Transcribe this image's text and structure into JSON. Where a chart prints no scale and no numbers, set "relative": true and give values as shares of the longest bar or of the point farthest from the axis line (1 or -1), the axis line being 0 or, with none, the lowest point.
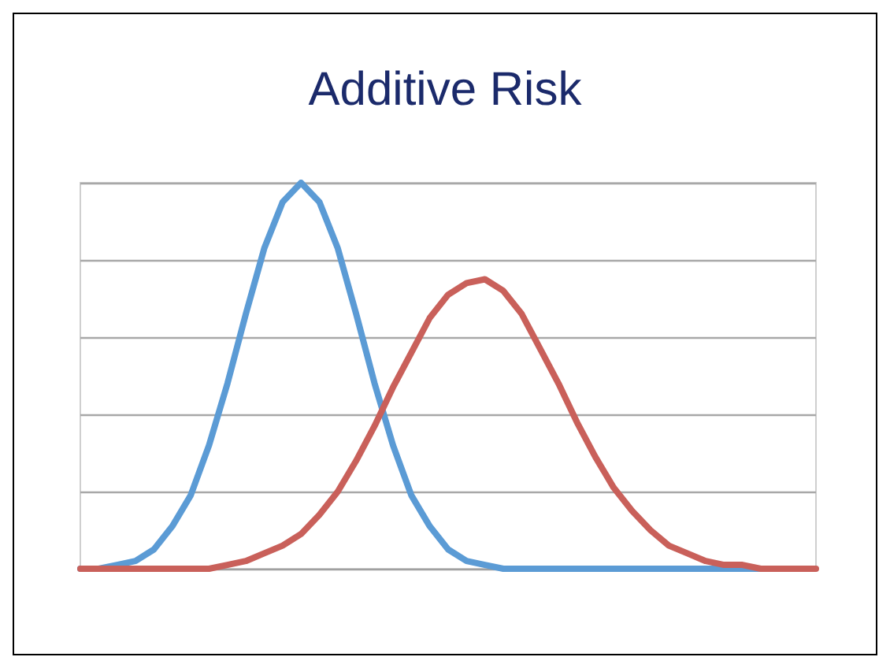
{
  "chart_data": {
    "type": "line",
    "title": "Additive Risk",
    "relative": true,
    "grid": "y",
    "marker": "none",
    "line_style": "solid",
    "categories": [
      null,
      null,
      null,
      null,
      null,
      null,
      null,
      null,
      null,
      null,
      null,
      null,
      null,
      null,
      null,
      null,
      null,
      null,
      null,
      null,
      null,
      null,
      null,
      null,
      null,
      null,
      null,
      null,
      null,
      null,
      null,
      null,
      null,
      null,
      null,
      null,
      null,
      null,
      null,
      null,
      null
    ],
    "series": [
      {
        "color": "#5b9bd5",
        "values": [
          0,
          0,
          0.01,
          0.02,
          0.05,
          0.11,
          0.19,
          0.32,
          0.48,
          0.66,
          0.83,
          0.95,
          1,
          0.95,
          0.83,
          0.66,
          0.48,
          0.32,
          0.19,
          0.11,
          0.05,
          0.02,
          0.01,
          0,
          0,
          0,
          0,
          0,
          0,
          0,
          0,
          0,
          0,
          0,
          0,
          0,
          0,
          0,
          0,
          null,
          null
        ]
      },
      {
        "color": "#c9605a",
        "values": [
          0,
          0,
          0,
          0,
          0,
          0,
          0,
          0,
          0.01,
          0.02,
          0.04,
          0.06,
          0.09,
          0.14,
          0.2,
          0.28,
          0.37,
          0.47,
          0.56,
          0.65,
          0.71,
          0.74,
          0.75,
          0.72,
          0.66,
          0.57,
          0.48,
          0.38,
          0.29,
          0.21,
          0.15,
          0.1,
          0.06,
          0.04,
          0.02,
          0.01,
          0.01,
          0,
          0,
          0,
          0
        ]
      }
    ]
  }
}
